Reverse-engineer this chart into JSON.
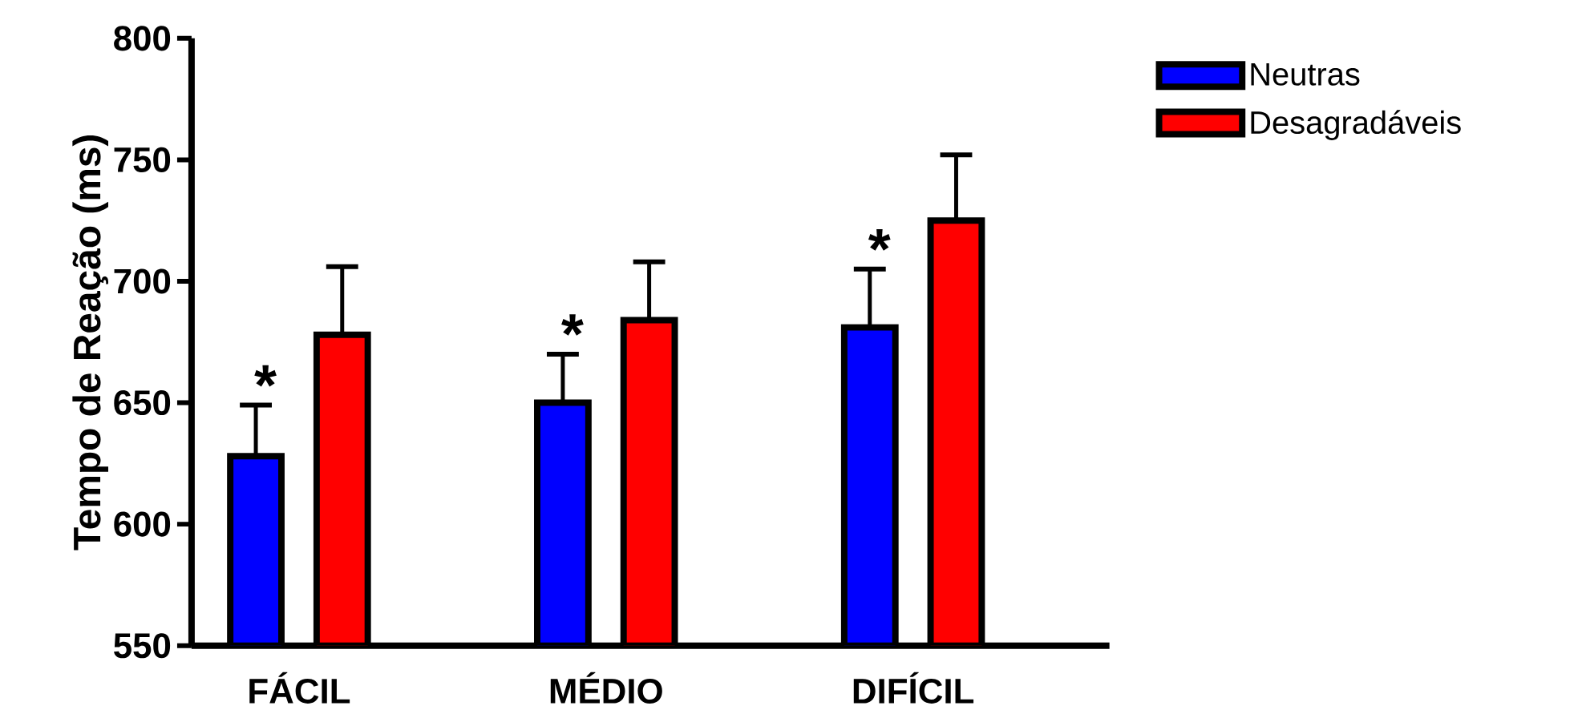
{
  "chart_data": {
    "type": "bar",
    "ylabel": "Tempo de Reação (ms)",
    "categories": [
      "FÁCIL",
      "MÉDIO",
      "DIFÍCIL"
    ],
    "series": [
      {
        "name": "Neutras",
        "color": "#0000ff",
        "values": [
          628,
          650,
          681
        ],
        "errors": [
          [
            628,
            649
          ],
          [
            650,
            670
          ],
          [
            681,
            705
          ]
        ]
      },
      {
        "name": "Desagradáveis",
        "color": "#ff0000",
        "values": [
          678,
          684,
          725
        ],
        "errors": [
          [
            678,
            706
          ],
          [
            684,
            708
          ],
          [
            725,
            752
          ]
        ]
      }
    ],
    "ylim": [
      550,
      800
    ],
    "yticks": [
      550,
      600,
      650,
      700,
      750,
      800
    ],
    "grid": false,
    "legend": "top right",
    "annotations": [
      "*",
      "*",
      "*"
    ]
  }
}
